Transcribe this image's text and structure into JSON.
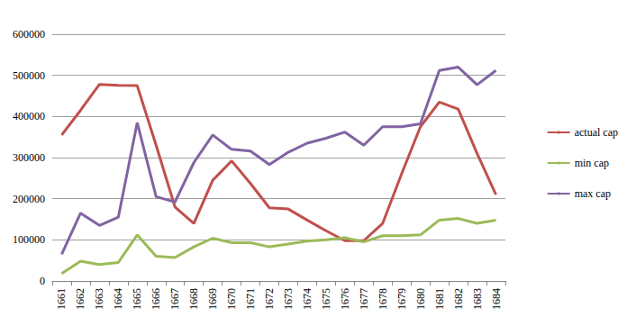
{
  "chart_data": {
    "type": "line",
    "categories": [
      "1661",
      "1662",
      "1663",
      "1664",
      "1665",
      "1666",
      "1667",
      "1668",
      "1669",
      "1670",
      "1671",
      "1672",
      "1673",
      "1674",
      "1675",
      "1676",
      "1677",
      "1678",
      "1679",
      "1680",
      "1681",
      "1682",
      "1683",
      "1684"
    ],
    "series": [
      {
        "name": "actual cap",
        "color": "#c0504d",
        "values": [
          355000,
          415000,
          478000,
          476000,
          475000,
          330000,
          180000,
          140000,
          245000,
          292000,
          237000,
          178000,
          175000,
          148000,
          122000,
          98000,
          98000,
          140000,
          260000,
          375000,
          435000,
          418000,
          310000,
          210000
        ]
      },
      {
        "name": "min cap",
        "color": "#9bbb59",
        "values": [
          18000,
          48000,
          40000,
          45000,
          112000,
          60000,
          57000,
          83000,
          104000,
          93000,
          93000,
          83000,
          90000,
          97000,
          100000,
          105000,
          95000,
          110000,
          110000,
          112000,
          148000,
          152000,
          140000,
          148000
        ]
      },
      {
        "name": "max cap",
        "color": "#8064a2",
        "values": [
          65000,
          165000,
          135000,
          155000,
          385000,
          205000,
          192000,
          288000,
          355000,
          320000,
          316000,
          283000,
          313000,
          335000,
          347000,
          362000,
          330000,
          375000,
          375000,
          382000,
          512000,
          520000,
          477000,
          512000
        ]
      }
    ],
    "ylim": [
      0,
      600000
    ],
    "yticks": [
      0,
      100000,
      200000,
      300000,
      400000,
      500000,
      600000
    ],
    "grid": true,
    "legend": "right"
  }
}
